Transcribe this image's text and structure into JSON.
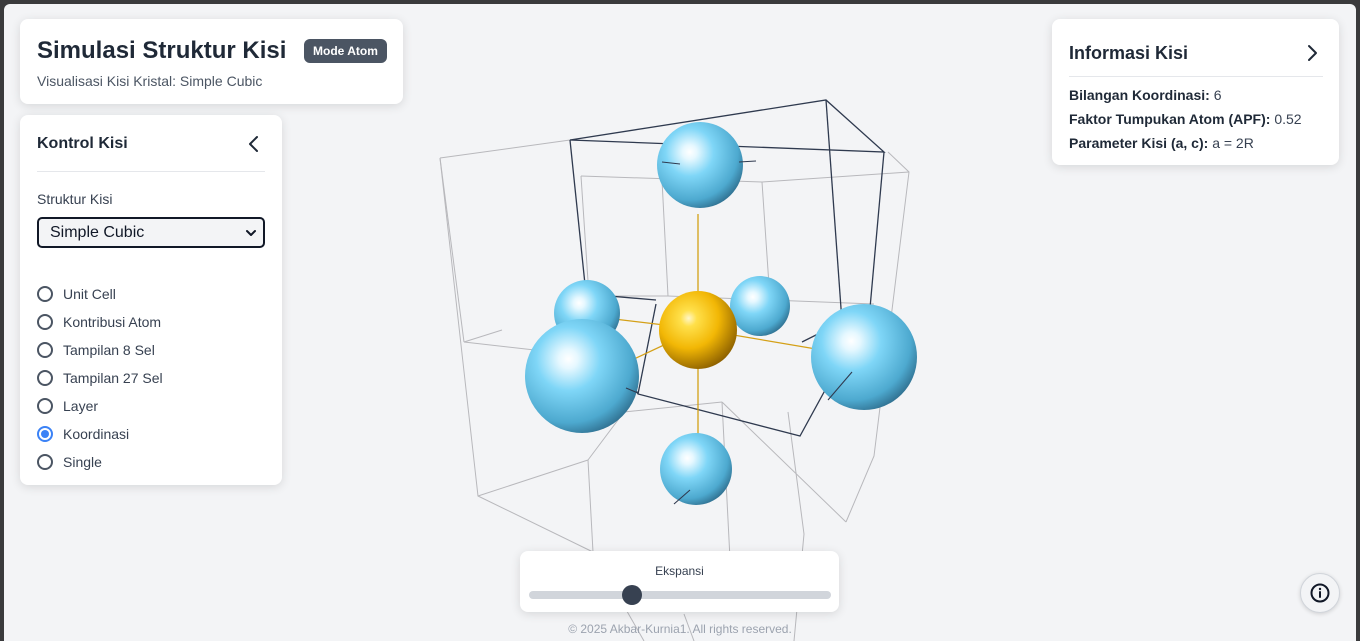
{
  "header": {
    "title": "Simulasi Struktur Kisi",
    "badge": "Mode Atom",
    "subtitle": "Visualisasi Kisi Kristal: Simple Cubic"
  },
  "control_panel": {
    "title": "Kontrol Kisi",
    "collapse_icon": "chevron-left-icon",
    "structure_label": "Struktur Kisi",
    "structure_selected": "Simple Cubic",
    "view_modes": [
      {
        "label": "Unit Cell",
        "checked": false
      },
      {
        "label": "Kontribusi Atom",
        "checked": false
      },
      {
        "label": "Tampilan 8 Sel",
        "checked": false
      },
      {
        "label": "Tampilan 27 Sel",
        "checked": false
      },
      {
        "label": "Layer",
        "checked": false
      },
      {
        "label": "Koordinasi",
        "checked": true
      },
      {
        "label": "Single",
        "checked": false
      }
    ]
  },
  "info_panel": {
    "title": "Informasi Kisi",
    "expand_icon": "chevron-right-icon",
    "coordination_label": "Bilangan Koordinasi:",
    "coordination_value": "6",
    "apf_label": "Faktor Tumpukan Atom (APF):",
    "apf_value": "0.52",
    "param_label": "Parameter Kisi (a, c):",
    "param_value": "a = 2R"
  },
  "expansion": {
    "label": "Ekspansi",
    "value_fraction": 0.34
  },
  "info_button": {
    "icon": "info-circle-icon"
  },
  "footer": "© 2025 Akbar-Kurnia1. All rights reserved.",
  "colors": {
    "accent": "#3b82f6",
    "center_atom": "#f2b705",
    "neighbor_atom": "#7dd3f5",
    "bond": "#d4a017",
    "cell_edge": "#2f3a4f",
    "grid": "#b8b8bc"
  }
}
